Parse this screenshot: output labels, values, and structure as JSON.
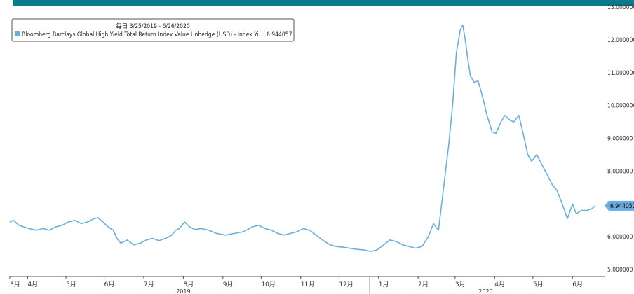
{
  "chart_data": {
    "type": "line",
    "header_bar_color": "#0b7a8a",
    "line_color": "#6aaee0",
    "badge_color": "#6aaee0",
    "legend": {
      "period_label": "毎日 3/25/2019 - 6/26/2020",
      "series_label": "Bloomberg Barclays Global High Yield Total Return Index Value Unhedge (USD) - Index Yi...",
      "series_value": "6.944057"
    },
    "last_value_label": "6.944057",
    "last_value": 6.944057,
    "ylim": [
      5.0,
      13.0
    ],
    "y_ticks": [
      {
        "value": 5,
        "label": "5.000000"
      },
      {
        "value": 6,
        "label": "6.000000"
      },
      {
        "value": 7,
        "label": "7.000000"
      },
      {
        "value": 8,
        "label": "8.000000"
      },
      {
        "value": 9,
        "label": "9.000000"
      },
      {
        "value": 10,
        "label": "10.000000"
      },
      {
        "value": 11,
        "label": "11.000000"
      },
      {
        "value": 12,
        "label": "12.000000"
      },
      {
        "value": 13,
        "label": "13.000000"
      }
    ],
    "xlim": [
      "2019-03-25",
      "2020-06-26"
    ],
    "x_ticks": [
      {
        "date": "2019-03-25",
        "label": "3月"
      },
      {
        "date": "2019-04-08",
        "label": "4月"
      },
      {
        "date": "2019-05-08",
        "label": "5月"
      },
      {
        "date": "2019-06-07",
        "label": "6月"
      },
      {
        "date": "2019-07-08",
        "label": "7月"
      },
      {
        "date": "2019-08-08",
        "label": "8月"
      },
      {
        "date": "2019-09-08",
        "label": "9月"
      },
      {
        "date": "2019-10-08",
        "label": "10月"
      },
      {
        "date": "2019-11-08",
        "label": "11月"
      },
      {
        "date": "2019-12-08",
        "label": "12月"
      },
      {
        "date": "2020-01-08",
        "label": "1月"
      },
      {
        "date": "2020-02-08",
        "label": "2月"
      },
      {
        "date": "2020-03-08",
        "label": "3月"
      },
      {
        "date": "2020-04-08",
        "label": "4月"
      },
      {
        "date": "2020-05-08",
        "label": "5月"
      },
      {
        "date": "2020-06-08",
        "label": "6月"
      }
    ],
    "year_labels": [
      {
        "date": "2019-08-08",
        "label": "2019"
      },
      {
        "date": "2020-04-01",
        "label": "2020"
      }
    ],
    "year_divider_date": "2020-01-01",
    "series": [
      {
        "x": [
          "2019-03-25",
          "2019-03-28",
          "2019-04-01",
          "2019-04-05",
          "2019-04-09",
          "2019-04-15",
          "2019-04-20",
          "2019-04-25",
          "2019-04-30",
          "2019-05-05",
          "2019-05-10",
          "2019-05-15",
          "2019-05-20",
          "2019-05-25",
          "2019-05-30",
          "2019-06-02",
          "2019-06-06",
          "2019-06-10",
          "2019-06-14",
          "2019-06-17",
          "2019-06-20",
          "2019-06-25",
          "2019-06-30",
          "2019-07-05",
          "2019-07-10",
          "2019-07-15",
          "2019-07-20",
          "2019-07-25",
          "2019-07-30",
          "2019-08-02",
          "2019-08-05",
          "2019-08-09",
          "2019-08-13",
          "2019-08-17",
          "2019-08-22",
          "2019-08-28",
          "2019-09-03",
          "2019-09-10",
          "2019-09-17",
          "2019-09-24",
          "2019-10-01",
          "2019-10-06",
          "2019-10-11",
          "2019-10-16",
          "2019-10-21",
          "2019-10-26",
          "2019-10-31",
          "2019-11-05",
          "2019-11-10",
          "2019-11-15",
          "2019-11-20",
          "2019-11-25",
          "2019-12-01",
          "2019-12-06",
          "2019-12-11",
          "2019-12-16",
          "2019-12-21",
          "2019-12-27",
          "2020-01-02",
          "2020-01-07",
          "2020-01-12",
          "2020-01-17",
          "2020-01-22",
          "2020-01-27",
          "2020-02-01",
          "2020-02-06",
          "2020-02-11",
          "2020-02-16",
          "2020-02-20",
          "2020-02-24",
          "2020-02-28",
          "2020-03-03",
          "2020-03-06",
          "2020-03-09",
          "2020-03-12",
          "2020-03-14",
          "2020-03-16",
          "2020-03-18",
          "2020-03-20",
          "2020-03-23",
          "2020-03-26",
          "2020-03-30",
          "2020-04-02",
          "2020-04-06",
          "2020-04-09",
          "2020-04-13",
          "2020-04-16",
          "2020-04-20",
          "2020-04-23",
          "2020-04-27",
          "2020-04-30",
          "2020-05-04",
          "2020-05-07",
          "2020-05-11",
          "2020-05-15",
          "2020-05-19",
          "2020-05-23",
          "2020-05-27",
          "2020-05-31",
          "2020-06-04",
          "2020-06-08",
          "2020-06-11",
          "2020-06-15",
          "2020-06-19",
          "2020-06-23",
          "2020-06-26"
        ],
        "values": [
          6.45,
          6.5,
          6.35,
          6.3,
          6.25,
          6.2,
          6.25,
          6.2,
          6.3,
          6.35,
          6.45,
          6.5,
          6.4,
          6.45,
          6.55,
          6.58,
          6.45,
          6.3,
          6.2,
          5.95,
          5.8,
          5.9,
          5.75,
          5.8,
          5.9,
          5.95,
          5.88,
          5.95,
          6.05,
          6.2,
          6.25,
          6.45,
          6.3,
          6.22,
          6.25,
          6.2,
          6.1,
          6.05,
          6.1,
          6.15,
          6.3,
          6.35,
          6.25,
          6.2,
          6.1,
          6.05,
          6.1,
          6.15,
          6.25,
          6.2,
          6.05,
          5.9,
          5.75,
          5.7,
          5.68,
          5.65,
          5.62,
          5.6,
          5.55,
          5.6,
          5.75,
          5.9,
          5.85,
          5.75,
          5.7,
          5.65,
          5.7,
          6.0,
          6.4,
          6.2,
          7.5,
          8.8,
          10.0,
          11.6,
          12.3,
          12.45,
          12.0,
          11.4,
          10.9,
          10.7,
          10.75,
          10.2,
          9.7,
          9.2,
          9.15,
          9.5,
          9.7,
          9.55,
          9.5,
          9.7,
          9.2,
          8.5,
          8.3,
          8.5,
          8.2,
          7.9,
          7.6,
          7.4,
          7.0,
          6.55,
          7.0,
          6.7,
          6.8,
          6.8,
          6.85,
          6.944
        ]
      }
    ]
  }
}
